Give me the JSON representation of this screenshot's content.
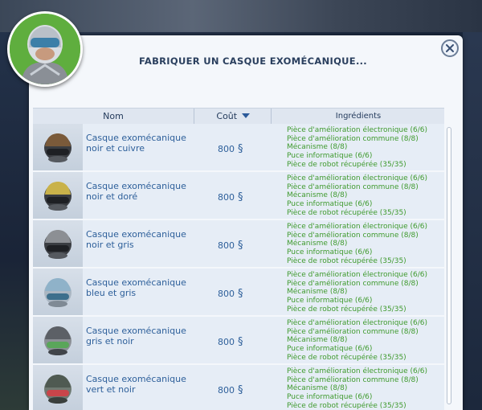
{
  "dialog": {
    "title": "FABRIQUER UN CASQUE EXOMÉCANIQUE..."
  },
  "columns": {
    "name": "Nom",
    "cost": "Coût",
    "ingredients": "Ingrédients"
  },
  "items": [
    {
      "name": "Casque exomécanique noir et cuivre",
      "cost": "800",
      "color": "#7a5a3a",
      "ingredients": [
        "Pièce d'amélioration électronique (6/6)",
        "Pièce d'amélioration commune (8/8)",
        "Mécanisme (8/8)",
        "Puce informatique (6/6)",
        "Pièce de robot récupérée (35/35)"
      ]
    },
    {
      "name": "Casque exomécanique noir et doré",
      "cost": "800",
      "color": "#c9b24a",
      "ingredients": [
        "Pièce d'amélioration électronique (6/6)",
        "Pièce d'amélioration commune (8/8)",
        "Mécanisme (8/8)",
        "Puce informatique (6/6)",
        "Pièce de robot récupérée (35/35)"
      ]
    },
    {
      "name": "Casque exomécanique noir et gris",
      "cost": "800",
      "color": "#8c8f94",
      "ingredients": [
        "Pièce d'amélioration électronique (6/6)",
        "Pièce d'amélioration commune (8/8)",
        "Mécanisme (8/8)",
        "Puce informatique (6/6)",
        "Pièce de robot récupérée (35/35)"
      ]
    },
    {
      "name": "Casque exomécanique bleu et gris",
      "cost": "800",
      "color": "#8fb2c9",
      "ingredients": [
        "Pièce d'amélioration électronique (6/6)",
        "Pièce d'amélioration commune (8/8)",
        "Mécanisme (8/8)",
        "Puce informatique (6/6)",
        "Pièce de robot récupérée (35/35)"
      ]
    },
    {
      "name": "Casque exomécanique gris et noir",
      "cost": "800",
      "color": "#5aa65a",
      "ingredients": [
        "Pièce d'amélioration électronique (6/6)",
        "Pièce d'amélioration commune (8/8)",
        "Mécanisme (8/8)",
        "Puce informatique (6/6)",
        "Pièce de robot récupérée (35/35)"
      ]
    },
    {
      "name": "Casque exomécanique vert et noir",
      "cost": "800",
      "color": "#c9454a",
      "ingredients": [
        "Pièce d'amélioration électronique (6/6)",
        "Pièce d'amélioration commune (8/8)",
        "Mécanisme (8/8)",
        "Puce informatique (6/6)",
        "Pièce de robot récupérée (35/35)"
      ]
    }
  ],
  "icons": {
    "close": "close-icon",
    "sort": "sort-desc-icon",
    "currency": "simoleon-icon",
    "avatar": "sim-avatar-icon",
    "item": "helmet-icon"
  },
  "colors": {
    "title": "#2a3f5e",
    "name": "#2d5f9a",
    "ingredients": "#3f9a2e",
    "avatar_bg": "#5fae3e"
  }
}
